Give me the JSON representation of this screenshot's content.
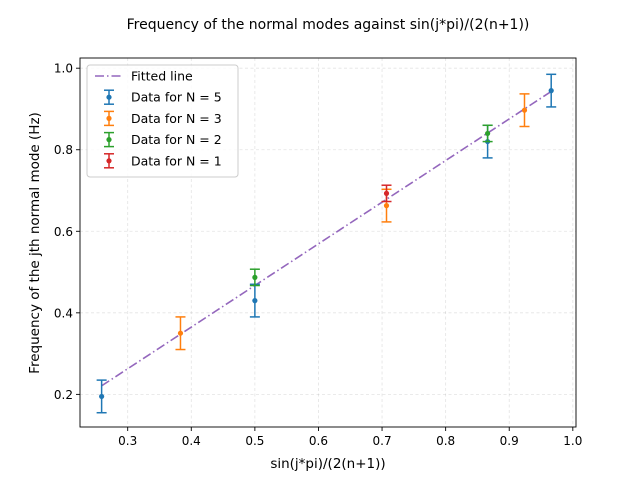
{
  "chart_data": {
    "type": "scatter",
    "title": "Frequency of the normal modes against sin(j*pi)/(2(n+1))",
    "xlabel": "sin(j*pi)/(2(n+1))",
    "ylabel": "Frequency of the jth normal mode (Hz)",
    "xlim": [
      0.225,
      1.005
    ],
    "ylim": [
      0.12,
      1.025
    ],
    "xticks": [
      "0.3",
      "0.4",
      "0.5",
      "0.6",
      "0.7",
      "0.8",
      "0.9",
      "1.0"
    ],
    "yticks": [
      "0.2",
      "0.4",
      "0.6",
      "0.8",
      "1.0"
    ],
    "grid": true,
    "legend_position": "top-left",
    "fitted_line": {
      "name": "Fitted line",
      "color": "#9467bd",
      "style": "dash-dot",
      "x": [
        0.259,
        0.966
      ],
      "y": [
        0.221,
        0.943
      ]
    },
    "series": [
      {
        "name": "Data for N = 5",
        "color": "#1f77b4",
        "x": [
          0.259,
          0.5,
          0.866,
          0.966
        ],
        "y": [
          0.195,
          0.43,
          0.82,
          0.945
        ],
        "yerr": [
          0.04,
          0.04,
          0.04,
          0.04
        ]
      },
      {
        "name": "Data for N = 3",
        "color": "#ff7f0e",
        "x": [
          0.383,
          0.707,
          0.924
        ],
        "y": [
          0.35,
          0.663,
          0.897
        ],
        "yerr": [
          0.04,
          0.04,
          0.04
        ]
      },
      {
        "name": "Data for N = 2",
        "color": "#2ca02c",
        "x": [
          0.5,
          0.866
        ],
        "y": [
          0.487,
          0.84
        ],
        "yerr": [
          0.02,
          0.02
        ]
      },
      {
        "name": "Data for N = 1",
        "color": "#d62728",
        "x": [
          0.707
        ],
        "y": [
          0.693
        ],
        "yerr": [
          0.02
        ]
      }
    ]
  }
}
